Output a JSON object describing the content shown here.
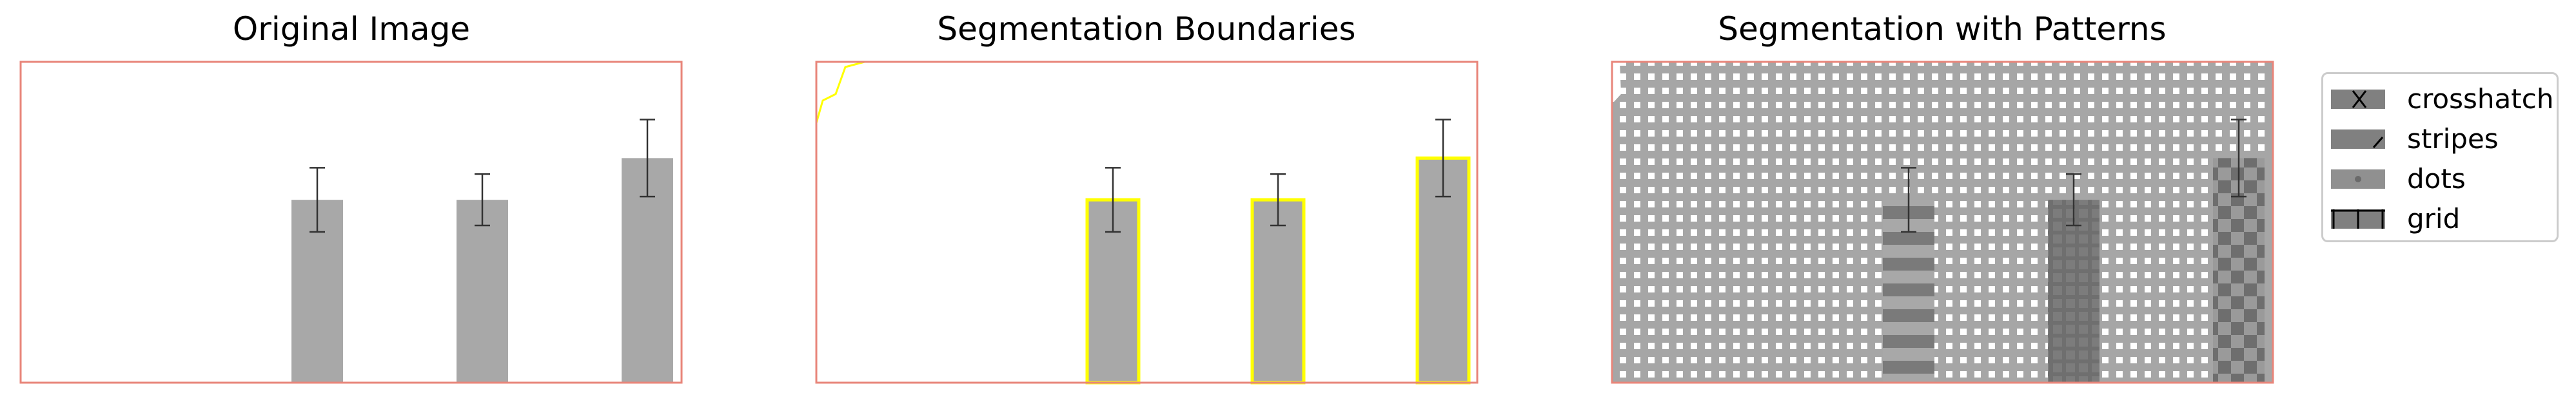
{
  "panels": {
    "original": {
      "title": "Original Image"
    },
    "boundaries": {
      "title": "Segmentation Boundaries"
    },
    "patterns": {
      "title": "Segmentation with Patterns"
    }
  },
  "legend": {
    "items": [
      {
        "label": "crosshatch",
        "pattern": "crosshatch"
      },
      {
        "label": "stripes",
        "pattern": "stripes"
      },
      {
        "label": "dots",
        "pattern": "dots"
      },
      {
        "label": "grid",
        "pattern": "grid"
      }
    ]
  },
  "colors": {
    "bar": "#a8a8a8",
    "frame": "#e8857a",
    "boundary": "#ffff00",
    "error_bar": "#333333",
    "pattern_bg": "#a6a6a6",
    "dark_bar": "#7a7a7a"
  },
  "chart_data": {
    "type": "bar",
    "categories": [
      "",
      "",
      ""
    ],
    "values": [
      0.57,
      0.57,
      0.7
    ],
    "errors": [
      0.1,
      0.08,
      0.12
    ],
    "xlabel": "",
    "ylabel": "",
    "ylim": [
      0,
      1.0
    ],
    "grid": false,
    "legend_placement": "outside-right"
  }
}
